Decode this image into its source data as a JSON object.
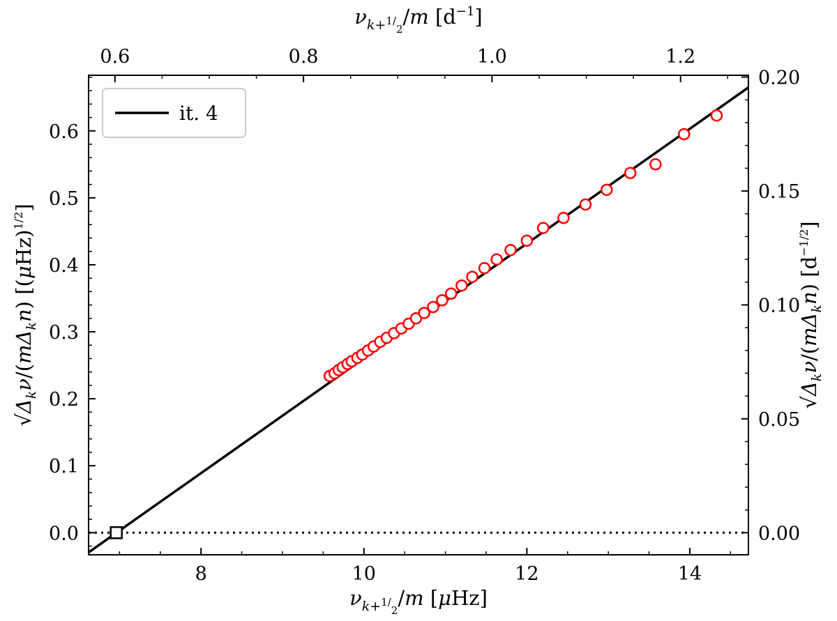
{
  "chart_data": {
    "type": "scatter",
    "x_axis_bottom": {
      "label": "ν_{k+1/2}/m [μHz]",
      "range": [
        6.62,
        14.72
      ],
      "ticks": [
        8,
        10,
        12,
        14
      ],
      "tick_labels": [
        "8",
        "10",
        "12",
        "14"
      ],
      "minor_step": 0.5
    },
    "x_axis_top": {
      "label": "ν_{k+1/2}/m [d⁻¹]",
      "range": [
        0.572,
        1.272
      ],
      "ticks": [
        0.6,
        0.8,
        1.0,
        1.2
      ],
      "tick_labels": [
        "0.6",
        "0.8",
        "1.0",
        "1.2"
      ],
      "minor_step": 0.05
    },
    "y_axis_left": {
      "label": "√(Δ_kν/(mΔ_kn)) [(μHz)^½]",
      "range": [
        -0.033,
        0.683
      ],
      "ticks": [
        0.0,
        0.1,
        0.2,
        0.3,
        0.4,
        0.5,
        0.6
      ],
      "tick_labels": [
        "0.0",
        "0.1",
        "0.2",
        "0.3",
        "0.4",
        "0.5",
        "0.6"
      ],
      "minor_step": 0.02
    },
    "y_axis_right": {
      "label": "√(Δ_kν/(mΔ_kn)) [d^-½]",
      "range": [
        -0.0097,
        0.2008
      ],
      "ticks": [
        0.0,
        0.05,
        0.1,
        0.15,
        0.2
      ],
      "tick_labels": [
        "0.00",
        "0.05",
        "0.10",
        "0.15",
        "0.20"
      ],
      "minor_step": 0.01
    },
    "legend": {
      "position": "top-left",
      "entries": [
        "it. 4"
      ]
    },
    "series": [
      {
        "name": "it. 4",
        "kind": "line",
        "style": "solid",
        "color": "#000000",
        "slope": 0.0857,
        "intercept": -0.5967
      },
      {
        "kind": "scatter",
        "marker": "open-circle",
        "color": "#ff0000",
        "points": [
          [
            9.58,
            0.234
          ],
          [
            9.64,
            0.238
          ],
          [
            9.69,
            0.243
          ],
          [
            9.74,
            0.247
          ],
          [
            9.8,
            0.252
          ],
          [
            9.85,
            0.256
          ],
          [
            9.92,
            0.261
          ],
          [
            9.98,
            0.266
          ],
          [
            10.05,
            0.272
          ],
          [
            10.12,
            0.278
          ],
          [
            10.2,
            0.285
          ],
          [
            10.28,
            0.291
          ],
          [
            10.37,
            0.298
          ],
          [
            10.46,
            0.305
          ],
          [
            10.55,
            0.312
          ],
          [
            10.64,
            0.32
          ],
          [
            10.74,
            0.328
          ],
          [
            10.85,
            0.337
          ],
          [
            10.96,
            0.347
          ],
          [
            11.07,
            0.357
          ],
          [
            11.2,
            0.369
          ],
          [
            11.33,
            0.382
          ],
          [
            11.48,
            0.395
          ],
          [
            11.63,
            0.408
          ],
          [
            11.8,
            0.422
          ],
          [
            12.0,
            0.436
          ],
          [
            12.2,
            0.455
          ],
          [
            12.45,
            0.47
          ],
          [
            12.72,
            0.49
          ],
          [
            12.98,
            0.512
          ],
          [
            13.27,
            0.537
          ],
          [
            13.58,
            0.55
          ],
          [
            13.93,
            0.595
          ],
          [
            14.33,
            0.623
          ]
        ]
      },
      {
        "kind": "marker",
        "marker": "open-square",
        "color": "#000000",
        "points": [
          [
            6.96,
            0.0
          ]
        ]
      },
      {
        "kind": "hline",
        "style": "dotted",
        "color": "#000000",
        "y": 0.0
      }
    ]
  }
}
